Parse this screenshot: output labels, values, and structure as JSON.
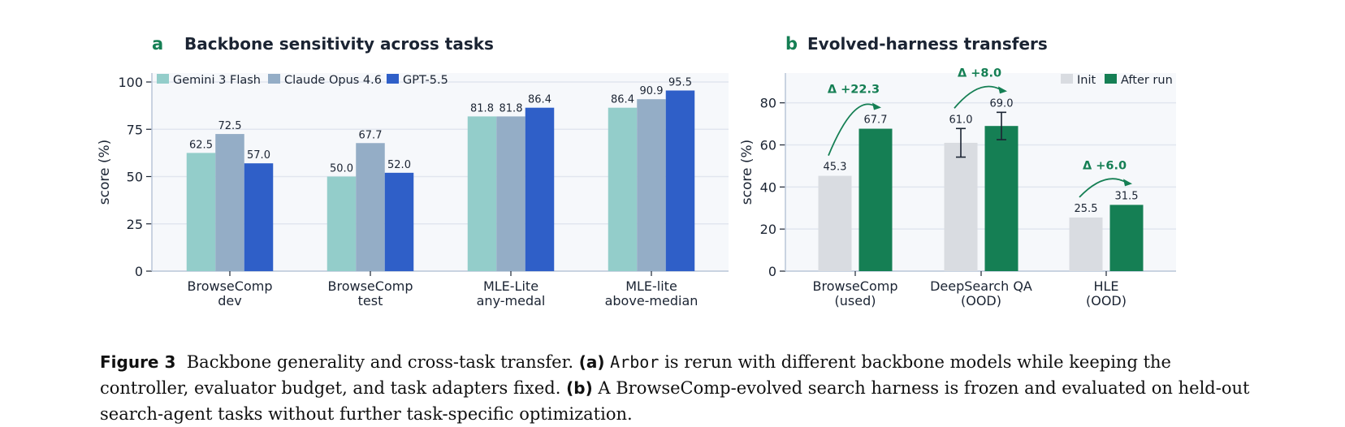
{
  "colors": {
    "gemini": "#93cdca",
    "claude": "#94adc6",
    "gpt": "#2f5fc8",
    "init": "#d9dce1",
    "after": "#157f54",
    "panel_bg": "#f6f8fb",
    "grid": "#e1e6ef",
    "axis": "#b9c5d8"
  },
  "chart_data": [
    {
      "panel_letter": "a",
      "title": "Backbone sensitivity across tasks",
      "type": "bar",
      "ylabel": "score (%)",
      "ylim": [
        0,
        100
      ],
      "yticks": [
        0,
        25,
        50,
        75,
        100
      ],
      "grid": true,
      "legend_position": "top-left",
      "categories": [
        [
          "BrowseComp",
          "dev"
        ],
        [
          "BrowseComp",
          "test"
        ],
        [
          "MLE-Lite",
          "any-medal"
        ],
        [
          "MLE-lite",
          "above-median"
        ]
      ],
      "series": [
        {
          "name": "Gemini 3 Flash",
          "color_key": "gemini",
          "values": [
            62.5,
            50.0,
            81.8,
            86.4
          ]
        },
        {
          "name": "Claude Opus 4.6",
          "color_key": "claude",
          "values": [
            72.5,
            67.7,
            81.8,
            90.9
          ]
        },
        {
          "name": "GPT-5.5",
          "color_key": "gpt",
          "values": [
            57.0,
            52.0,
            86.4,
            95.5
          ]
        }
      ]
    },
    {
      "panel_letter": "b",
      "title": "Evolved-harness transfers",
      "type": "bar",
      "ylabel": "score (%)",
      "ylim": [
        0,
        94
      ],
      "yticks": [
        0,
        20,
        40,
        60,
        80
      ],
      "grid": true,
      "legend_position": "top-right",
      "categories": [
        [
          "BrowseComp",
          "(used)"
        ],
        [
          "DeepSearch QA",
          "(OOD)"
        ],
        [
          "HLE",
          "(OOD)"
        ]
      ],
      "series": [
        {
          "name": "Init",
          "color_key": "init",
          "values": [
            45.3,
            61.0,
            25.5
          ],
          "error": [
            null,
            6.8,
            null
          ]
        },
        {
          "name": "After run",
          "color_key": "after",
          "values": [
            67.7,
            69.0,
            31.5
          ],
          "error": [
            null,
            6.5,
            null
          ]
        }
      ],
      "annotations": [
        "Δ +22.3",
        "Δ +8.0",
        "Δ +6.0"
      ]
    }
  ],
  "caption": {
    "label": "Figure 3",
    "text1": "Backbone generality and cross-task transfer.",
    "part_a": "(a)",
    "system": "Arbor",
    "text2": "is rerun with different backbone models while keeping the controller, evaluator budget, and task adapters fixed.",
    "part_b": "(b)",
    "text3": "A BrowseComp-evolved search harness is frozen and evaluated on held-out search-agent tasks without further task-specific optimization."
  }
}
